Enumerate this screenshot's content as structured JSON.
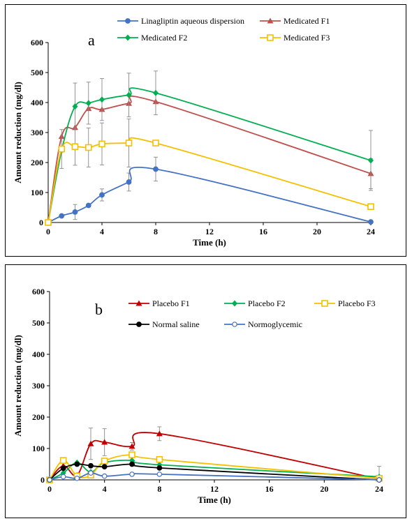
{
  "chart_data": [
    {
      "type": "line",
      "panel_label": "a",
      "xlabel": "Time (h)",
      "ylabel": "Amount reduction  (mg/dl)",
      "xlim": [
        0,
        24
      ],
      "ylim": [
        0,
        600
      ],
      "x_ticks": [
        "0",
        "4",
        "8",
        "12",
        "16",
        "20",
        "24"
      ],
      "y_ticks": [
        "0",
        "100",
        "200",
        "300",
        "400",
        "500",
        "600"
      ],
      "legend_position": "top",
      "series": [
        {
          "name": "Linagliptin aqueous dispersion",
          "color": "#4472c4",
          "marker": "circle",
          "x": [
            0,
            1,
            2,
            3,
            4,
            6,
            8,
            24
          ],
          "y": [
            0,
            22,
            35,
            57,
            92,
            135,
            178,
            2
          ],
          "err": [
            0,
            0,
            25,
            0,
            20,
            30,
            40,
            0
          ]
        },
        {
          "name": "Medicated F1",
          "color": "#c0504d",
          "marker": "triangle",
          "x": [
            0,
            1,
            2,
            3,
            4,
            6,
            8,
            24
          ],
          "y": [
            0,
            287,
            317,
            380,
            377,
            397,
            403,
            163
          ],
          "err": [
            0,
            0,
            0,
            0,
            0,
            0,
            0,
            50
          ]
        },
        {
          "name": "Medicated F2",
          "color": "#00b050",
          "marker": "diamond",
          "x": [
            0,
            1,
            2,
            3,
            4,
            6,
            8,
            24
          ],
          "y": [
            0,
            240,
            387,
            398,
            410,
            425,
            432,
            207
          ],
          "err": [
            0,
            0,
            78,
            70,
            70,
            73,
            73,
            100
          ]
        },
        {
          "name": "Medicated F3",
          "color": "#f5c000",
          "marker": "square",
          "x": [
            0,
            1,
            2,
            3,
            4,
            6,
            8,
            24
          ],
          "y": [
            0,
            245,
            253,
            250,
            262,
            265,
            265,
            53
          ],
          "err": [
            0,
            65,
            62,
            65,
            70,
            80,
            0,
            0
          ]
        }
      ]
    },
    {
      "type": "line",
      "panel_label": "b",
      "xlabel": "Time (h)",
      "ylabel": "Amount reduction  (mg/dl)",
      "xlim": [
        0,
        24
      ],
      "ylim": [
        0,
        600
      ],
      "x_ticks": [
        "0",
        "4",
        "8",
        "12",
        "16",
        "20",
        "24"
      ],
      "y_ticks": [
        "0",
        "100",
        "200",
        "300",
        "400",
        "500",
        "600"
      ],
      "legend_position": "top",
      "series": [
        {
          "name": "Placebo F1",
          "color": "#c00000",
          "marker": "triangle",
          "x": [
            0,
            1,
            2,
            3,
            4,
            6,
            8,
            24
          ],
          "y": [
            0,
            45,
            15,
            115,
            120,
            107,
            147,
            3
          ],
          "err": [
            0,
            0,
            0,
            50,
            43,
            12,
            22,
            0
          ]
        },
        {
          "name": "Placebo F2",
          "color": "#00b050",
          "marker": "diamond",
          "x": [
            0,
            1,
            2,
            3,
            4,
            6,
            8,
            24
          ],
          "y": [
            0,
            22,
            55,
            25,
            55,
            62,
            48,
            10
          ],
          "err": [
            0,
            0,
            0,
            0,
            0,
            0,
            0,
            33
          ]
        },
        {
          "name": "Placebo F3",
          "color": "#f5c000",
          "marker": "square",
          "x": [
            0,
            1,
            2,
            3,
            4,
            6,
            8,
            24
          ],
          "y": [
            0,
            62,
            12,
            15,
            60,
            80,
            65,
            5
          ],
          "err": [
            0,
            0,
            0,
            0,
            0,
            0,
            0,
            0
          ]
        },
        {
          "name": "Normal saline",
          "color": "#000000",
          "marker": "circle",
          "x": [
            0,
            1,
            2,
            3,
            4,
            6,
            8,
            24
          ],
          "y": [
            0,
            37,
            50,
            45,
            42,
            50,
            38,
            0
          ],
          "err": [
            0,
            0,
            0,
            0,
            0,
            0,
            0,
            0
          ]
        },
        {
          "name": "Normoglycemic",
          "color": "#4472c4",
          "marker": "open-circle",
          "x": [
            0,
            1,
            2,
            3,
            4,
            6,
            8,
            24
          ],
          "y": [
            0,
            10,
            5,
            22,
            12,
            18,
            18,
            0
          ],
          "err": [
            0,
            0,
            0,
            0,
            0,
            0,
            0,
            0
          ]
        }
      ]
    }
  ]
}
